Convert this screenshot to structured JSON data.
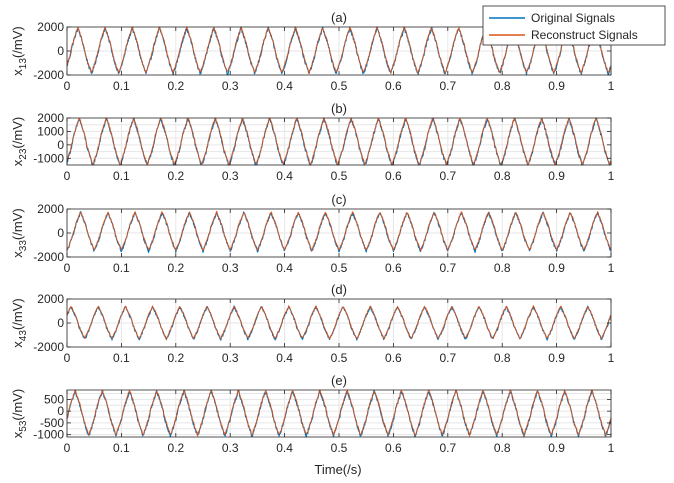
{
  "figure": {
    "xlabel": "Time(/s)",
    "legend": {
      "placement": "top-right",
      "entries": [
        {
          "name": "Original Signals",
          "color": "#0072BD"
        },
        {
          "name": "Reconstruct Signals",
          "color": "#D95319"
        }
      ]
    }
  },
  "chart_data": [
    {
      "type": "line",
      "title": "(a)",
      "ylabel_base": "x",
      "ylabel_sub": "13",
      "ylabel_unit": "(/mV)",
      "xlim": [
        0,
        1
      ],
      "ylim": [
        -2000,
        2000
      ],
      "xticks": [
        0,
        0.1,
        0.2,
        0.3,
        0.4,
        0.5,
        0.6,
        0.7,
        0.8,
        0.9,
        1
      ],
      "xtick_labels": [
        "0",
        "0.1",
        "0.2",
        "0.3",
        "0.4",
        "0.5",
        "0.6",
        "0.7",
        "0.8",
        "0.9",
        "1"
      ],
      "yticks": [
        -2000,
        0,
        2000
      ],
      "ytick_labels": [
        "-2000",
        "0",
        "2000"
      ],
      "grid": true,
      "signal": {
        "frequency_hz": 20,
        "amplitude_mv": 1900,
        "offset_mv": 0,
        "phase_cycles": 0.1
      },
      "series": [
        {
          "name": "Original Signals",
          "color": "#0072BD"
        },
        {
          "name": "Reconstruct Signals",
          "color": "#D95319"
        }
      ]
    },
    {
      "type": "line",
      "title": "(b)",
      "ylabel_base": "x",
      "ylabel_sub": "23",
      "ylabel_unit": "(/mV)",
      "xlim": [
        0,
        1
      ],
      "ylim": [
        -1500,
        2000
      ],
      "xticks": [
        0,
        0.1,
        0.2,
        0.3,
        0.4,
        0.5,
        0.6,
        0.7,
        0.8,
        0.9,
        1
      ],
      "xtick_labels": [
        "0",
        "0.1",
        "0.2",
        "0.3",
        "0.4",
        "0.5",
        "0.6",
        "0.7",
        "0.8",
        "0.9",
        "1"
      ],
      "yticks": [
        -1000,
        0,
        1000,
        2000
      ],
      "ytick_labels": [
        "-1000",
        "0",
        "1000",
        "2000"
      ],
      "yticks_minor_grid": [
        -500,
        500,
        1500
      ],
      "grid": true,
      "signal": {
        "frequency_hz": 20,
        "amplitude_mv": 1750,
        "offset_mv": 200,
        "phase_cycles": 0.05
      },
      "series": [
        {
          "name": "Original Signals",
          "color": "#0072BD"
        },
        {
          "name": "Reconstruct Signals",
          "color": "#D95319"
        }
      ]
    },
    {
      "type": "line",
      "title": "(c)",
      "ylabel_base": "x",
      "ylabel_sub": "33",
      "ylabel_unit": "(/mV)",
      "xlim": [
        0,
        1
      ],
      "ylim": [
        -2000,
        2000
      ],
      "xticks": [
        0,
        0.1,
        0.2,
        0.3,
        0.4,
        0.5,
        0.6,
        0.7,
        0.8,
        0.9,
        1
      ],
      "xtick_labels": [
        "0",
        "0.1",
        "0.2",
        "0.3",
        "0.4",
        "0.5",
        "0.6",
        "0.7",
        "0.8",
        "0.9",
        "1"
      ],
      "yticks": [
        -2000,
        0,
        2000
      ],
      "ytick_labels": [
        "-2000",
        "0",
        "2000"
      ],
      "grid": true,
      "signal": {
        "frequency_hz": 20,
        "amplitude_mv": 1600,
        "offset_mv": 100,
        "phase_cycles": 0.0
      },
      "series": [
        {
          "name": "Original Signals",
          "color": "#0072BD"
        },
        {
          "name": "Reconstruct Signals",
          "color": "#D95319"
        }
      ]
    },
    {
      "type": "line",
      "title": "(d)",
      "ylabel_base": "x",
      "ylabel_sub": "43",
      "ylabel_unit": "(/mV)",
      "xlim": [
        0,
        1
      ],
      "ylim": [
        -2000,
        2000
      ],
      "xticks": [
        0,
        0.1,
        0.2,
        0.3,
        0.4,
        0.5,
        0.6,
        0.7,
        0.8,
        0.9,
        1
      ],
      "xtick_labels": [
        "0",
        "0.1",
        "0.2",
        "0.3",
        "0.4",
        "0.5",
        "0.6",
        "0.7",
        "0.8",
        "0.9",
        "1"
      ],
      "yticks": [
        -2000,
        0,
        2000
      ],
      "ytick_labels": [
        "-2000",
        "0",
        "2000"
      ],
      "grid": true,
      "signal": {
        "frequency_hz": 20,
        "amplitude_mv": 1350,
        "offset_mv": 0,
        "phase_cycles": 0.35
      },
      "series": [
        {
          "name": "Original Signals",
          "color": "#0072BD"
        },
        {
          "name": "Reconstruct Signals",
          "color": "#D95319"
        }
      ]
    },
    {
      "type": "line",
      "title": "(e)",
      "ylabel_base": "x",
      "ylabel_sub": "53",
      "ylabel_unit": "(/mV)",
      "xlim": [
        0,
        1
      ],
      "ylim": [
        -1100,
        900
      ],
      "xticks": [
        0,
        0.1,
        0.2,
        0.3,
        0.4,
        0.5,
        0.6,
        0.7,
        0.8,
        0.9,
        1
      ],
      "xtick_labels": [
        "0",
        "0.1",
        "0.2",
        "0.3",
        "0.4",
        "0.5",
        "0.6",
        "0.7",
        "0.8",
        "0.9",
        "1"
      ],
      "yticks": [
        -1000,
        -500,
        0,
        500
      ],
      "ytick_labels": [
        "-1000",
        "-500",
        "0",
        "500"
      ],
      "yticks_minor_grid": [
        -750,
        -250,
        250,
        750
      ],
      "grid": true,
      "signal": {
        "frequency_hz": 20,
        "amplitude_mv": 950,
        "offset_mv": -100,
        "phase_cycles": 0.2
      },
      "series": [
        {
          "name": "Original Signals",
          "color": "#0072BD"
        },
        {
          "name": "Reconstruct Signals",
          "color": "#D95319"
        }
      ]
    }
  ]
}
